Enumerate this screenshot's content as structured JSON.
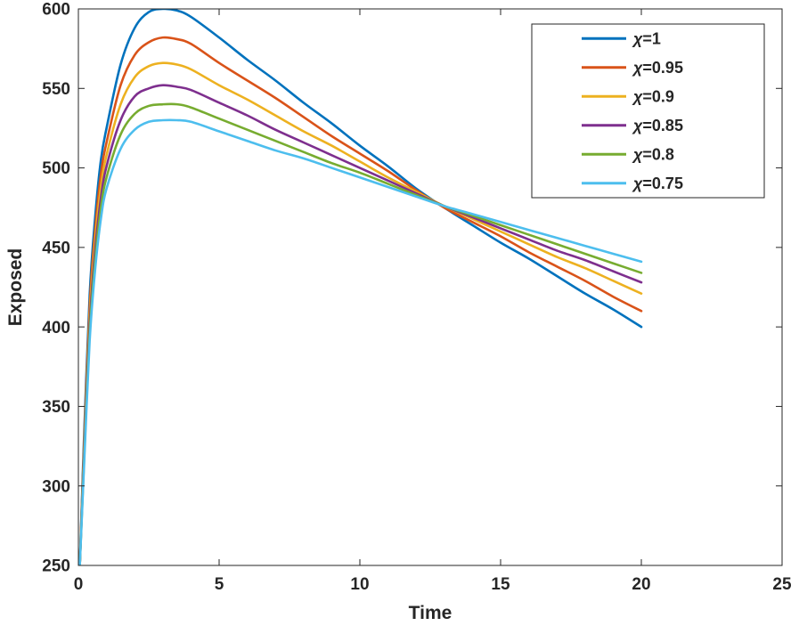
{
  "figure": {
    "background": "#ffffff"
  },
  "chart_data": {
    "type": "line",
    "title": "",
    "xlabel": "Time",
    "ylabel": "Exposed",
    "xlim": [
      0,
      25
    ],
    "ylim": [
      250,
      600
    ],
    "xticks": [
      0,
      5,
      10,
      15,
      20,
      25
    ],
    "yticks": [
      250,
      300,
      350,
      400,
      450,
      500,
      550,
      600
    ],
    "grid": false,
    "axis_color": "#262626",
    "line_width": 2.6,
    "legend": {
      "position": "top-right",
      "border_color": "#262626",
      "background": "#ffffff"
    },
    "x": [
      0.05,
      0.2,
      0.4,
      0.6,
      0.8,
      1,
      1.5,
      2,
      2.5,
      3,
      3.5,
      4,
      5,
      6,
      7,
      8,
      9,
      10,
      11,
      12,
      13,
      14,
      15,
      16,
      17,
      18,
      19,
      20
    ],
    "series": [
      {
        "name": "χ=1",
        "color": "#0072BD",
        "y": [
          250,
          330,
          420,
          470,
          505,
          525,
          565,
          588,
          598,
          600,
          599,
          595,
          582,
          568,
          555,
          541,
          528,
          514,
          501,
          487,
          475,
          464,
          453,
          443,
          432,
          421,
          411,
          400
        ]
      },
      {
        "name": "χ=0.95",
        "color": "#D95319",
        "y": [
          250,
          325,
          413,
          462,
          496,
          516,
          552,
          571,
          579,
          582,
          581,
          578,
          566,
          555,
          544,
          532,
          520,
          509,
          498,
          486,
          475,
          466,
          457,
          447,
          438,
          429,
          419,
          410
        ]
      },
      {
        "name": "χ=0.9",
        "color": "#EDB120",
        "y": [
          250,
          321,
          407,
          455,
          488,
          508,
          540,
          557,
          564,
          566,
          565,
          562,
          552,
          543,
          533,
          523,
          514,
          504,
          494,
          485,
          476,
          468,
          460,
          452,
          444,
          437,
          429,
          421
        ]
      },
      {
        "name": "χ=0.85",
        "color": "#7E2F8E",
        "y": [
          250,
          318,
          401,
          449,
          481,
          501,
          530,
          545,
          550,
          552,
          551,
          549,
          541,
          533,
          524,
          516,
          508,
          500,
          492,
          484,
          476,
          469,
          462,
          455,
          448,
          442,
          435,
          428
        ]
      },
      {
        "name": "χ=0.8",
        "color": "#77AC30",
        "y": [
          250,
          315,
          396,
          443,
          475,
          494,
          521,
          534,
          539,
          540,
          540,
          538,
          531,
          524,
          517,
          510,
          503,
          497,
          490,
          483,
          476,
          470,
          464,
          458,
          452,
          446,
          440,
          434
        ]
      },
      {
        "name": "χ=0.75",
        "color": "#4DBEEE",
        "y": [
          250,
          312,
          391,
          437,
          468,
          487,
          512,
          524,
          529,
          530,
          530,
          529,
          523,
          517,
          511,
          506,
          500,
          494,
          488,
          482,
          476,
          471,
          466,
          461,
          456,
          451,
          446,
          441
        ]
      }
    ]
  }
}
